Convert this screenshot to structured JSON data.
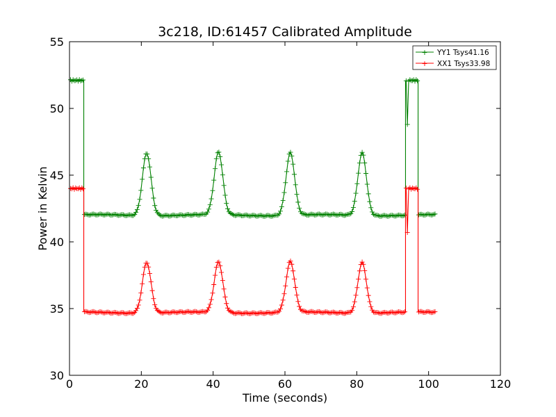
{
  "chart_data": {
    "type": "line",
    "title": "3c218, ID:61457 Calibrated Amplitude",
    "xlabel": "Time (seconds)",
    "ylabel": "Power in Kelvin",
    "xlim": [
      0,
      120
    ],
    "ylim": [
      30,
      55
    ],
    "xticks": [
      "0",
      "20",
      "40",
      "60",
      "80",
      "100",
      "120"
    ],
    "yticks": [
      "30",
      "35",
      "40",
      "45",
      "50",
      "55"
    ],
    "grid": false,
    "legend_position": "top-right",
    "marker": "+",
    "series": [
      {
        "name": "YY1 Tsys41.16",
        "color": "#008000",
        "high_level": 52.1,
        "base_level": 42.0,
        "peak_level": 46.7,
        "high_segments": [
          [
            0.3,
            4.0
          ],
          [
            93.5,
            97.0
          ]
        ],
        "base_segments": [
          [
            4.0,
            93.5
          ],
          [
            97.0,
            102.0
          ]
        ],
        "peaks": [
          21.5,
          41.5,
          61.5,
          81.5
        ],
        "dip_at": 94.2,
        "dip_value": 48.8
      },
      {
        "name": "XX1 Tsys33.98",
        "color": "#ff0000",
        "high_level": 44.0,
        "base_level": 34.7,
        "peak_level": 38.5,
        "high_segments": [
          [
            0.3,
            4.0
          ],
          [
            93.5,
            97.0
          ]
        ],
        "base_segments": [
          [
            4.0,
            93.5
          ],
          [
            97.0,
            102.0
          ]
        ],
        "peaks": [
          21.5,
          41.5,
          61.5,
          81.5
        ],
        "dip_at": 94.2,
        "dip_value": 40.7
      }
    ]
  }
}
